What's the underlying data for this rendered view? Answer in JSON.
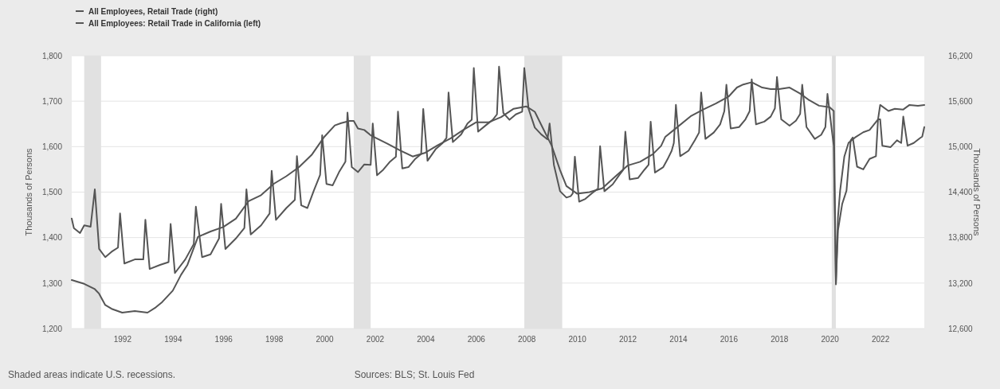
{
  "chart_data": {
    "type": "line",
    "ylabel": "Thousands of Persons",
    "y2label": "Thousands of Persons",
    "xlim": [
      "1990-01",
      "2023-10"
    ],
    "xticks": [
      "1992",
      "1994",
      "1996",
      "1998",
      "2000",
      "2002",
      "2004",
      "2006",
      "2008",
      "2010",
      "2012",
      "2014",
      "2016",
      "2018",
      "2020",
      "2022"
    ],
    "ylim": [
      1200,
      1800
    ],
    "yticks": [
      {
        "value": 1200,
        "label": "1,200"
      },
      {
        "value": 1300,
        "label": "1,300"
      },
      {
        "value": 1400,
        "label": "1,400"
      },
      {
        "value": 1500,
        "label": "1,500"
      },
      {
        "value": 1600,
        "label": "1,600"
      },
      {
        "value": 1700,
        "label": "1,700"
      },
      {
        "value": 1800,
        "label": "1,800"
      }
    ],
    "y2lim": [
      12600,
      16200
    ],
    "y2ticks": [
      {
        "value": 12600,
        "label": "12,600"
      },
      {
        "value": 13200,
        "label": "13,200"
      },
      {
        "value": 13800,
        "label": "13,800"
      },
      {
        "value": 14400,
        "label": "14,400"
      },
      {
        "value": 15000,
        "label": "15,000"
      },
      {
        "value": 15600,
        "label": "15,600"
      },
      {
        "value": 16200,
        "label": "16,200"
      }
    ],
    "grid": "y",
    "legend": "top left",
    "bands": [
      {
        "axis": "x",
        "from": "1990-07",
        "to": "1991-03",
        "color": "#e1e1e1"
      },
      {
        "axis": "x",
        "from": "2001-03",
        "to": "2001-11",
        "color": "#e1e1e1"
      },
      {
        "axis": "x",
        "from": "2007-12",
        "to": "2009-06",
        "color": "#e1e1e1"
      },
      {
        "axis": "x",
        "from": "2020-02",
        "to": "2020-04",
        "color": "#e1e1e1"
      }
    ],
    "series": [
      {
        "name": "All Employees, Retail Trade (right)",
        "color": "#555555",
        "axis": "y2",
        "x": [
          "1990-01",
          "1990-07",
          "1990-12",
          "1991-02",
          "1991-05",
          "1991-08",
          "1992-01",
          "1992-07",
          "1993-01",
          "1993-05",
          "1993-08",
          "1994-01",
          "1994-05",
          "1994-08",
          "1995-01",
          "1995-07",
          "1996-01",
          "1996-07",
          "1997-01",
          "1997-07",
          "1998-01",
          "1998-07",
          "1999-01",
          "1999-07",
          "2000-01",
          "2000-06",
          "2000-09",
          "2001-01",
          "2001-03",
          "2001-05",
          "2001-08",
          "2001-11",
          "2002-07",
          "2003-01",
          "2003-07",
          "2004-01",
          "2004-07",
          "2005-01",
          "2005-07",
          "2006-01",
          "2006-07",
          "2007-01",
          "2007-07",
          "2008-01",
          "2008-05",
          "2008-08",
          "2009-01",
          "2009-05",
          "2009-08",
          "2010-01",
          "2010-07",
          "2011-01",
          "2011-07",
          "2012-01",
          "2012-07",
          "2013-01",
          "2013-05",
          "2013-07",
          "2013-11",
          "2014-07",
          "2015-01",
          "2015-07",
          "2016-01",
          "2016-05",
          "2016-08",
          "2016-12",
          "2017-05",
          "2017-09",
          "2018-01",
          "2018-06",
          "2018-11",
          "2019-03",
          "2019-08",
          "2020-01",
          "2020-03",
          "2020-04",
          "2020-05",
          "2020-06",
          "2020-08",
          "2020-10",
          "2021-01",
          "2021-05",
          "2021-08",
          "2021-12",
          "2022-01",
          "2022-05",
          "2022-08",
          "2022-12",
          "2023-03",
          "2023-07",
          "2023-10"
        ],
        "values": [
          13240,
          13190,
          13120,
          13060,
          12910,
          12860,
          12810,
          12830,
          12810,
          12880,
          12950,
          13100,
          13310,
          13440,
          13810,
          13880,
          13940,
          14050,
          14280,
          14360,
          14510,
          14610,
          14730,
          14890,
          15130,
          15280,
          15310,
          15340,
          15340,
          15240,
          15220,
          15150,
          15040,
          14950,
          14870,
          14920,
          15020,
          15110,
          15220,
          15320,
          15320,
          15390,
          15500,
          15530,
          15460,
          15290,
          15010,
          14690,
          14480,
          14380,
          14400,
          14450,
          14600,
          14750,
          14800,
          14900,
          15010,
          15130,
          15220,
          15400,
          15490,
          15570,
          15660,
          15780,
          15820,
          15850,
          15780,
          15760,
          15760,
          15780,
          15700,
          15620,
          15540,
          15520,
          15470,
          13200,
          14070,
          14420,
          14870,
          15050,
          15120,
          15190,
          15220,
          15360,
          15550,
          15470,
          15500,
          15490,
          15550,
          15540,
          15550
        ]
      },
      {
        "name": "All Employees: Retail Trade in California (left)",
        "color": "#555555",
        "axis": "y",
        "x": [
          "1990-01",
          "1990-02",
          "1990-05",
          "1990-07",
          "1990-10",
          "1990-12",
          "1991-02",
          "1991-05",
          "1991-08",
          "1991-11",
          "1991-12",
          "1992-02",
          "1992-07",
          "1992-11",
          "1992-12",
          "1993-02",
          "1993-07",
          "1993-11",
          "1993-12",
          "1994-02",
          "1994-07",
          "1994-11",
          "1994-12",
          "1995-03",
          "1995-07",
          "1995-11",
          "1995-12",
          "1996-02",
          "1996-07",
          "1996-11",
          "1996-12",
          "1997-02",
          "1997-07",
          "1997-11",
          "1997-12",
          "1998-02",
          "1998-07",
          "1998-11",
          "1998-12",
          "1999-02",
          "1999-05",
          "1999-08",
          "1999-11",
          "1999-12",
          "2000-02",
          "2000-05",
          "2000-08",
          "2000-11",
          "2000-12",
          "2001-02",
          "2001-05",
          "2001-08",
          "2001-11",
          "2001-12",
          "2002-02",
          "2002-05",
          "2002-08",
          "2002-11",
          "2002-12",
          "2003-02",
          "2003-05",
          "2003-08",
          "2003-11",
          "2003-12",
          "2004-02",
          "2004-06",
          "2004-09",
          "2004-11",
          "2004-12",
          "2005-02",
          "2005-06",
          "2005-09",
          "2005-11",
          "2005-12",
          "2006-02",
          "2006-06",
          "2006-09",
          "2006-11",
          "2006-12",
          "2007-02",
          "2007-05",
          "2007-08",
          "2007-11",
          "2007-12",
          "2008-02",
          "2008-05",
          "2008-08",
          "2008-11",
          "2008-12",
          "2009-02",
          "2009-05",
          "2009-08",
          "2009-10",
          "2009-11",
          "2009-12",
          "2010-02",
          "2010-05",
          "2010-08",
          "2010-11",
          "2010-12",
          "2011-02",
          "2011-06",
          "2011-09",
          "2011-11",
          "2011-12",
          "2012-02",
          "2012-06",
          "2012-09",
          "2012-11",
          "2012-12",
          "2013-02",
          "2013-06",
          "2013-08",
          "2013-10",
          "2013-11",
          "2013-12",
          "2014-02",
          "2014-06",
          "2014-09",
          "2014-11",
          "2014-12",
          "2015-02",
          "2015-06",
          "2015-09",
          "2015-11",
          "2015-12",
          "2016-02",
          "2016-06",
          "2016-09",
          "2016-11",
          "2016-12",
          "2017-02",
          "2017-06",
          "2017-09",
          "2017-11",
          "2017-12",
          "2018-02",
          "2018-06",
          "2018-09",
          "2018-11",
          "2018-12",
          "2019-02",
          "2019-06",
          "2019-09",
          "2019-11",
          "2019-12",
          "2020-02",
          "2020-03",
          "2020-04",
          "2020-05",
          "2020-07",
          "2020-09",
          "2020-11",
          "2020-12",
          "2021-02",
          "2021-05",
          "2021-08",
          "2021-11",
          "2021-12",
          "2022-01",
          "2022-02",
          "2022-06",
          "2022-09",
          "2022-11",
          "2022-12",
          "2023-02",
          "2023-05",
          "2023-08",
          "2023-09",
          "2023-10"
        ],
        "values": [
          1442,
          1421,
          1410,
          1427,
          1424,
          1506,
          1375,
          1357,
          1369,
          1378,
          1453,
          1343,
          1352,
          1352,
          1439,
          1331,
          1340,
          1346,
          1430,
          1322,
          1352,
          1386,
          1468,
          1357,
          1363,
          1398,
          1474,
          1375,
          1398,
          1421,
          1506,
          1407,
          1427,
          1453,
          1547,
          1439,
          1465,
          1483,
          1579,
          1471,
          1465,
          1503,
          1538,
          1625,
          1518,
          1515,
          1544,
          1567,
          1675,
          1555,
          1544,
          1561,
          1560,
          1651,
          1537,
          1549,
          1566,
          1578,
          1677,
          1552,
          1555,
          1572,
          1584,
          1683,
          1569,
          1595,
          1607,
          1619,
          1719,
          1610,
          1627,
          1651,
          1659,
          1773,
          1633,
          1648,
          1659,
          1671,
          1776,
          1674,
          1659,
          1671,
          1677,
          1773,
          1683,
          1642,
          1627,
          1616,
          1651,
          1560,
          1502,
          1488,
          1491,
          1497,
          1578,
          1479,
          1485,
          1497,
          1508,
          1601,
          1502,
          1517,
          1537,
          1549,
          1633,
          1528,
          1531,
          1549,
          1560,
          1655,
          1543,
          1555,
          1572,
          1591,
          1608,
          1692,
          1579,
          1591,
          1614,
          1631,
          1719,
          1617,
          1631,
          1649,
          1678,
          1736,
          1640,
          1643,
          1660,
          1678,
          1748,
          1649,
          1655,
          1666,
          1684,
          1753,
          1660,
          1646,
          1657,
          1672,
          1736,
          1643,
          1617,
          1626,
          1643,
          1716,
          1637,
          1602,
          1297,
          1416,
          1474,
          1503,
          1614,
          1620,
          1556,
          1550,
          1573,
          1579,
          1660,
          1660,
          1602,
          1599,
          1614,
          1608,
          1666,
          1602,
          1608,
          1619,
          1622,
          1643
        ]
      }
    ],
    "annotations": [
      "Shaded areas indicate U.S. recessions.",
      "Sources: BLS; St. Louis Fed"
    ]
  }
}
